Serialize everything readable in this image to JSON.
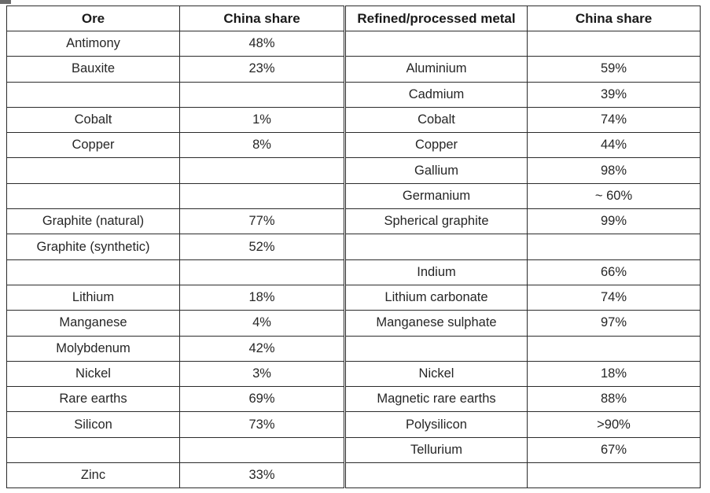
{
  "table": {
    "headers": {
      "ore": "Ore",
      "ore_share": "China share",
      "refined": "Refined/processed metal",
      "refined_share": "China share"
    },
    "rows": [
      {
        "ore": "Antimony",
        "ore_share": "48%",
        "refined": "",
        "refined_share": ""
      },
      {
        "ore": "Bauxite",
        "ore_share": "23%",
        "refined": "Aluminium",
        "refined_share": "59%"
      },
      {
        "ore": "",
        "ore_share": "",
        "refined": "Cadmium",
        "refined_share": "39%"
      },
      {
        "ore": "Cobalt",
        "ore_share": "1%",
        "refined": "Cobalt",
        "refined_share": "74%"
      },
      {
        "ore": "Copper",
        "ore_share": "8%",
        "refined": "Copper",
        "refined_share": "44%"
      },
      {
        "ore": "",
        "ore_share": "",
        "refined": "Gallium",
        "refined_share": "98%"
      },
      {
        "ore": "",
        "ore_share": "",
        "refined": "Germanium",
        "refined_share": "~ 60%"
      },
      {
        "ore": "Graphite (natural)",
        "ore_share": "77%",
        "refined": "Spherical graphite",
        "refined_share": "99%"
      },
      {
        "ore": "Graphite (synthetic)",
        "ore_share": "52%",
        "refined": "",
        "refined_share": ""
      },
      {
        "ore": "",
        "ore_share": "",
        "refined": "Indium",
        "refined_share": "66%"
      },
      {
        "ore": "Lithium",
        "ore_share": "18%",
        "refined": "Lithium carbonate",
        "refined_share": "74%"
      },
      {
        "ore": "Manganese",
        "ore_share": "4%",
        "refined": "Manganese sulphate",
        "refined_share": "97%"
      },
      {
        "ore": "Molybdenum",
        "ore_share": "42%",
        "refined": "",
        "refined_share": ""
      },
      {
        "ore": "Nickel",
        "ore_share": "3%",
        "refined": "Nickel",
        "refined_share": "18%"
      },
      {
        "ore": "Rare earths",
        "ore_share": "69%",
        "refined": "Magnetic rare earths",
        "refined_share": "88%"
      },
      {
        "ore": "Silicon",
        "ore_share": "73%",
        "refined": "Polysilicon",
        "refined_share": ">90%"
      },
      {
        "ore": "",
        "ore_share": "",
        "refined": "Tellurium",
        "refined_share": "67%"
      },
      {
        "ore": "Zinc",
        "ore_share": "33%",
        "refined": "",
        "refined_share": ""
      }
    ]
  }
}
